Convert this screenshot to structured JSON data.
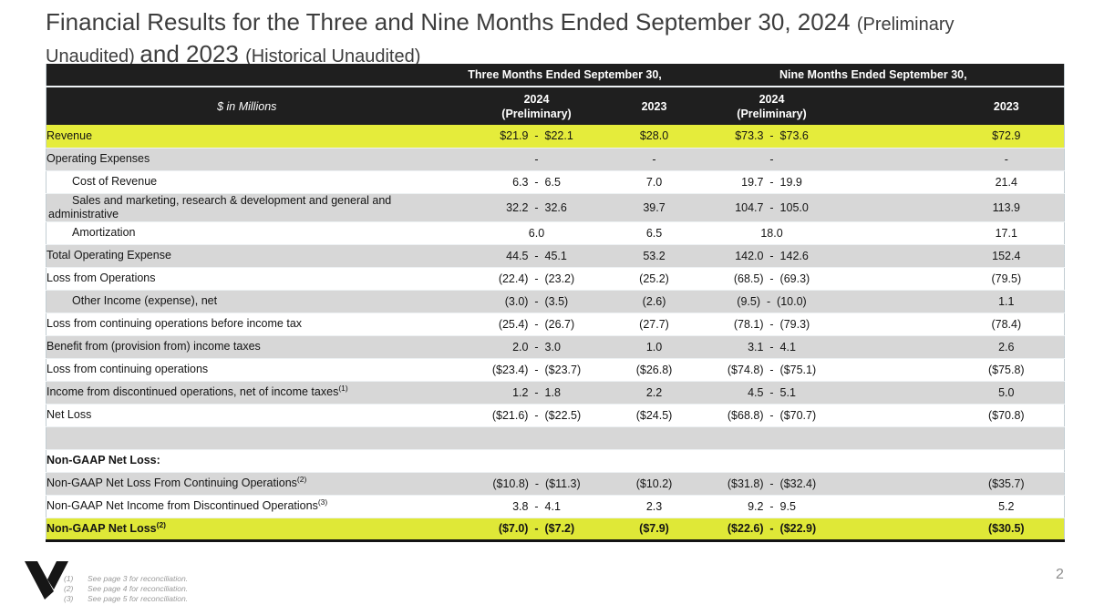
{
  "colors": {
    "highlight_row": "#e5ec3b",
    "highlight_bottom_row": "#dfe837",
    "header_bg": "#1f1f1f",
    "row_gray": "#d7d7d7",
    "row_white": "#ffffff",
    "accent_border": "#141414"
  },
  "title": {
    "lines": [
      [
        {
          "text": "Financial Results for the Three and Nine Months Ended September 30, 2024 ",
          "size": "large"
        },
        {
          "text": "(Preliminary",
          "size": "small"
        }
      ],
      [
        {
          "text": "Unaudited) ",
          "size": "small"
        },
        {
          "text": "and 2023 ",
          "size": "large"
        },
        {
          "text": "(Historical Unaudited)",
          "size": "small"
        }
      ]
    ]
  },
  "table": {
    "unit_label": "$ in Millions",
    "group_headers": [
      "Three Months Ended September 30,",
      "Nine Months Ended September 30,"
    ],
    "columns": [
      {
        "line1": "2024",
        "line2": "(Preliminary)"
      },
      {
        "line1": "2023",
        "line2": ""
      },
      {
        "line1": "2024",
        "line2": "(Preliminary)"
      },
      {
        "line1": "2023",
        "line2": ""
      }
    ],
    "rows": [
      {
        "label": "Revenue",
        "sup": "",
        "indent": false,
        "bold": false,
        "style": "highlight",
        "values": [
          "$21.9  -  $22.1",
          "$28.0",
          "$73.3  -  $73.6",
          "$72.9"
        ]
      },
      {
        "label": "Operating Expenses",
        "sup": "",
        "indent": false,
        "bold": false,
        "style": "gray",
        "values": [
          "-",
          "-",
          "-",
          "-"
        ]
      },
      {
        "label": "Cost of Revenue",
        "sup": "",
        "indent": true,
        "bold": false,
        "style": "white",
        "values": [
          "6.3  -  6.5",
          "7.0",
          "19.7  -  19.9",
          "21.4"
        ]
      },
      {
        "label": "Sales and marketing, research & development and general and administrative",
        "sup": "",
        "indent": true,
        "bold": false,
        "style": "gray",
        "values": [
          "32.2  -  32.6",
          "39.7",
          "104.7  -  105.0",
          "113.9"
        ]
      },
      {
        "label": "Amortization",
        "sup": "",
        "indent": true,
        "bold": false,
        "style": "white",
        "values": [
          "6.0",
          "6.5",
          "18.0",
          "17.1"
        ]
      },
      {
        "label": "Total Operating Expense",
        "sup": "",
        "indent": false,
        "bold": false,
        "style": "gray",
        "values": [
          "44.5  -  45.1",
          "53.2",
          "142.0  -  142.6",
          "152.4"
        ]
      },
      {
        "label": "Loss from Operations",
        "sup": "",
        "indent": false,
        "bold": false,
        "style": "white",
        "values": [
          "(22.4)  -  (23.2)",
          "(25.2)",
          "(68.5)  -  (69.3)",
          "(79.5)"
        ]
      },
      {
        "label": "Other Income (expense), net",
        "sup": "",
        "indent": true,
        "bold": false,
        "style": "gray",
        "values": [
          "(3.0)  -  (3.5)",
          "(2.6)",
          "(9.5)  -  (10.0)",
          "1.1"
        ]
      },
      {
        "label": "Loss from continuing operations before income tax",
        "sup": "",
        "indent": false,
        "bold": false,
        "style": "white",
        "values": [
          "(25.4)  -  (26.7)",
          "(27.7)",
          "(78.1)  -  (79.3)",
          "(78.4)"
        ]
      },
      {
        "label": "Benefit from (provision from) income taxes",
        "sup": "",
        "indent": false,
        "bold": false,
        "style": "gray",
        "values": [
          "2.0  -  3.0",
          "1.0",
          "3.1  -  4.1",
          "2.6"
        ]
      },
      {
        "label": "Loss from continuing operations",
        "sup": "",
        "indent": false,
        "bold": false,
        "style": "white",
        "values": [
          "($23.4)  -  ($23.7)",
          "($26.8)",
          "($74.8)  -  ($75.1)",
          "($75.8)"
        ]
      },
      {
        "label": "Income from discontinued operations, net of income taxes",
        "sup": "(1)",
        "indent": false,
        "bold": false,
        "style": "gray",
        "values": [
          "1.2  -  1.8",
          "2.2",
          "4.5  -  5.1",
          "5.0"
        ]
      },
      {
        "label": "Net Loss",
        "sup": "",
        "indent": false,
        "bold": false,
        "style": "white",
        "values": [
          "($21.6)  -  ($22.5)",
          "($24.5)",
          "($68.8)  -  ($70.7)",
          "($70.8)"
        ]
      },
      {
        "label": "",
        "sup": "",
        "indent": false,
        "bold": false,
        "style": "blank",
        "values": [
          "",
          "",
          "",
          ""
        ]
      },
      {
        "label": "Non-GAAP Net Loss:",
        "sup": "",
        "indent": false,
        "bold": true,
        "style": "white",
        "values": [
          "",
          "",
          "",
          ""
        ]
      },
      {
        "label": "Non-GAAP Net Loss From Continuing Operations",
        "sup": "(2)",
        "indent": false,
        "bold": false,
        "style": "gray",
        "values": [
          "($10.8)  -  ($11.3)",
          "($10.2)",
          "($31.8)  -  ($32.4)",
          "($35.7)"
        ]
      },
      {
        "label": "Non-GAAP Net Income from Discontinued Operations",
        "sup": "(3)",
        "indent": false,
        "bold": false,
        "style": "white",
        "values": [
          "3.8  -  4.1",
          "2.3",
          "9.2  -  9.5",
          "5.2"
        ]
      },
      {
        "label": "Non-GAAP Net Loss",
        "sup": "(2)",
        "indent": false,
        "bold": true,
        "style": "highlight-bold",
        "values": [
          "($7.0)  -  ($7.2)",
          "($7.9)",
          "($22.6)  -  ($22.9)",
          "($30.5)"
        ]
      }
    ]
  },
  "footnotes": [
    {
      "num": "(1)",
      "text": "See page 3 for reconciliation."
    },
    {
      "num": "(2)",
      "text": "See page 4 for reconciliation."
    },
    {
      "num": "(3)",
      "text": "See page 5 for reconciliation."
    }
  ],
  "page_number": "2"
}
